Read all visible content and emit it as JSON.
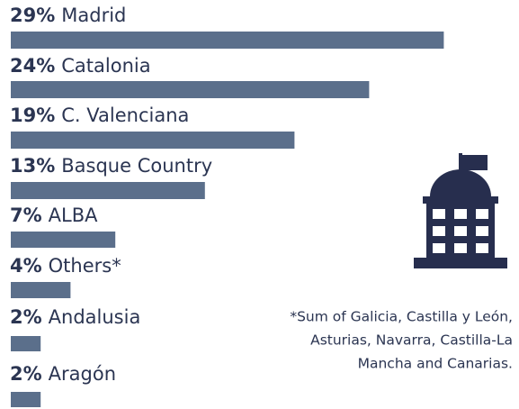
{
  "chart_data": {
    "type": "bar",
    "orientation": "horizontal",
    "categories": [
      "Madrid",
      "Catalonia",
      "C. Valenciana",
      "Basque Country",
      "ALBA",
      "Others*",
      "Andalusia",
      "Aragón"
    ],
    "values": [
      29,
      24,
      19,
      13,
      7,
      4,
      2,
      2
    ],
    "value_labels": [
      "29%",
      "24%",
      "19%",
      "13%",
      "7%",
      "4%",
      "2%",
      "2%"
    ],
    "color": "#5b6f8b",
    "footnote": [
      "*Sum of Galicia, Castilla y León,",
      "Asturias, Navarra, Castilla-La",
      "Mancha and Canarias."
    ]
  }
}
